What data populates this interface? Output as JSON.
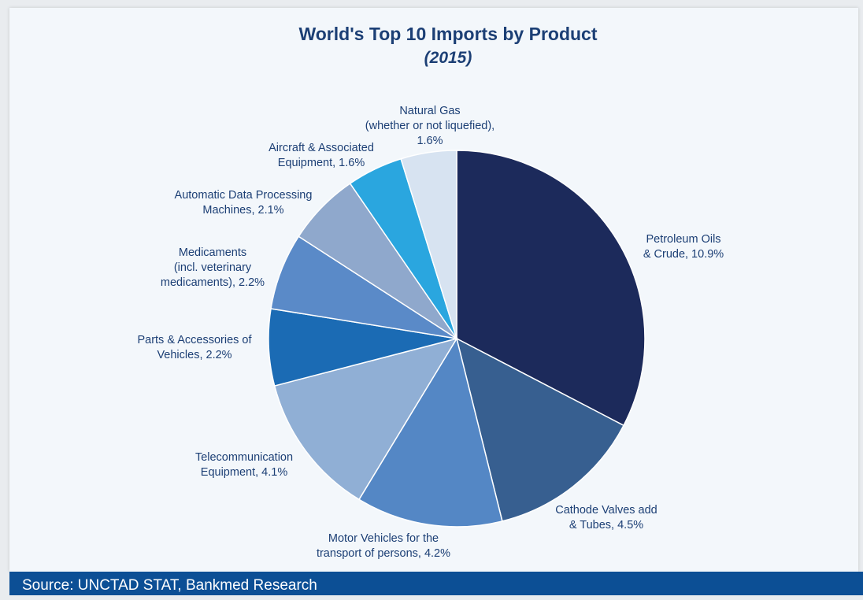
{
  "title": "World's Top 10 Imports by Product",
  "subtitle": "(2015)",
  "footer": "Source: UNCTAD STAT, Bankmed Research",
  "chart_data": {
    "type": "pie",
    "title": "World's Top 10 Imports by Product",
    "subtitle": "(2015)",
    "slices": [
      {
        "name": "Petroleum Oils & Crude",
        "value": 10.9,
        "label_lines": [
          "Petroleum Oils",
          "& Crude, 10.9%"
        ],
        "color": "#1c2a5b"
      },
      {
        "name": "Cathode Valves add & Tubes",
        "value": 4.5,
        "label_lines": [
          "Cathode Valves add",
          "& Tubes, 4.5%"
        ],
        "color": "#375f90"
      },
      {
        "name": "Motor Vehicles for the transport of persons",
        "value": 4.2,
        "label_lines": [
          "Motor Vehicles for the",
          "transport of persons, 4.2%"
        ],
        "color": "#5487c5"
      },
      {
        "name": "Telecommunication Equipment",
        "value": 4.1,
        "label_lines": [
          "Telecommunication",
          "Equipment, 4.1%"
        ],
        "color": "#90afd5"
      },
      {
        "name": "Parts & Accessories of Vehicles",
        "value": 2.2,
        "label_lines": [
          "Parts & Accessories of",
          "Vehicles, 2.2%"
        ],
        "color": "#1b6bb4"
      },
      {
        "name": "Medicaments (incl. veterinary medicaments)",
        "value": 2.2,
        "label_lines": [
          "Medicaments",
          "(incl. veterinary",
          "medicaments), 2.2%"
        ],
        "color": "#5a8ac8"
      },
      {
        "name": "Automatic Data Processing Machines",
        "value": 2.1,
        "label_lines": [
          "Automatic Data Processing",
          "Machines, 2.1%"
        ],
        "color": "#8fa8cc"
      },
      {
        "name": "Aircraft & Associated Equipment",
        "value": 1.6,
        "label_lines": [
          "Aircraft & Associated",
          "Equipment, 1.6%"
        ],
        "color": "#2aa6df"
      },
      {
        "name": "Natural Gas (whether or not liquefied)",
        "value": 1.6,
        "label_lines": [
          "Natural Gas",
          "(whether or not liquefied),",
          "1.6%"
        ],
        "color": "#d7e3f1"
      }
    ],
    "legend": "none",
    "start_angle": "12 o'clock",
    "direction": "clockwise"
  }
}
